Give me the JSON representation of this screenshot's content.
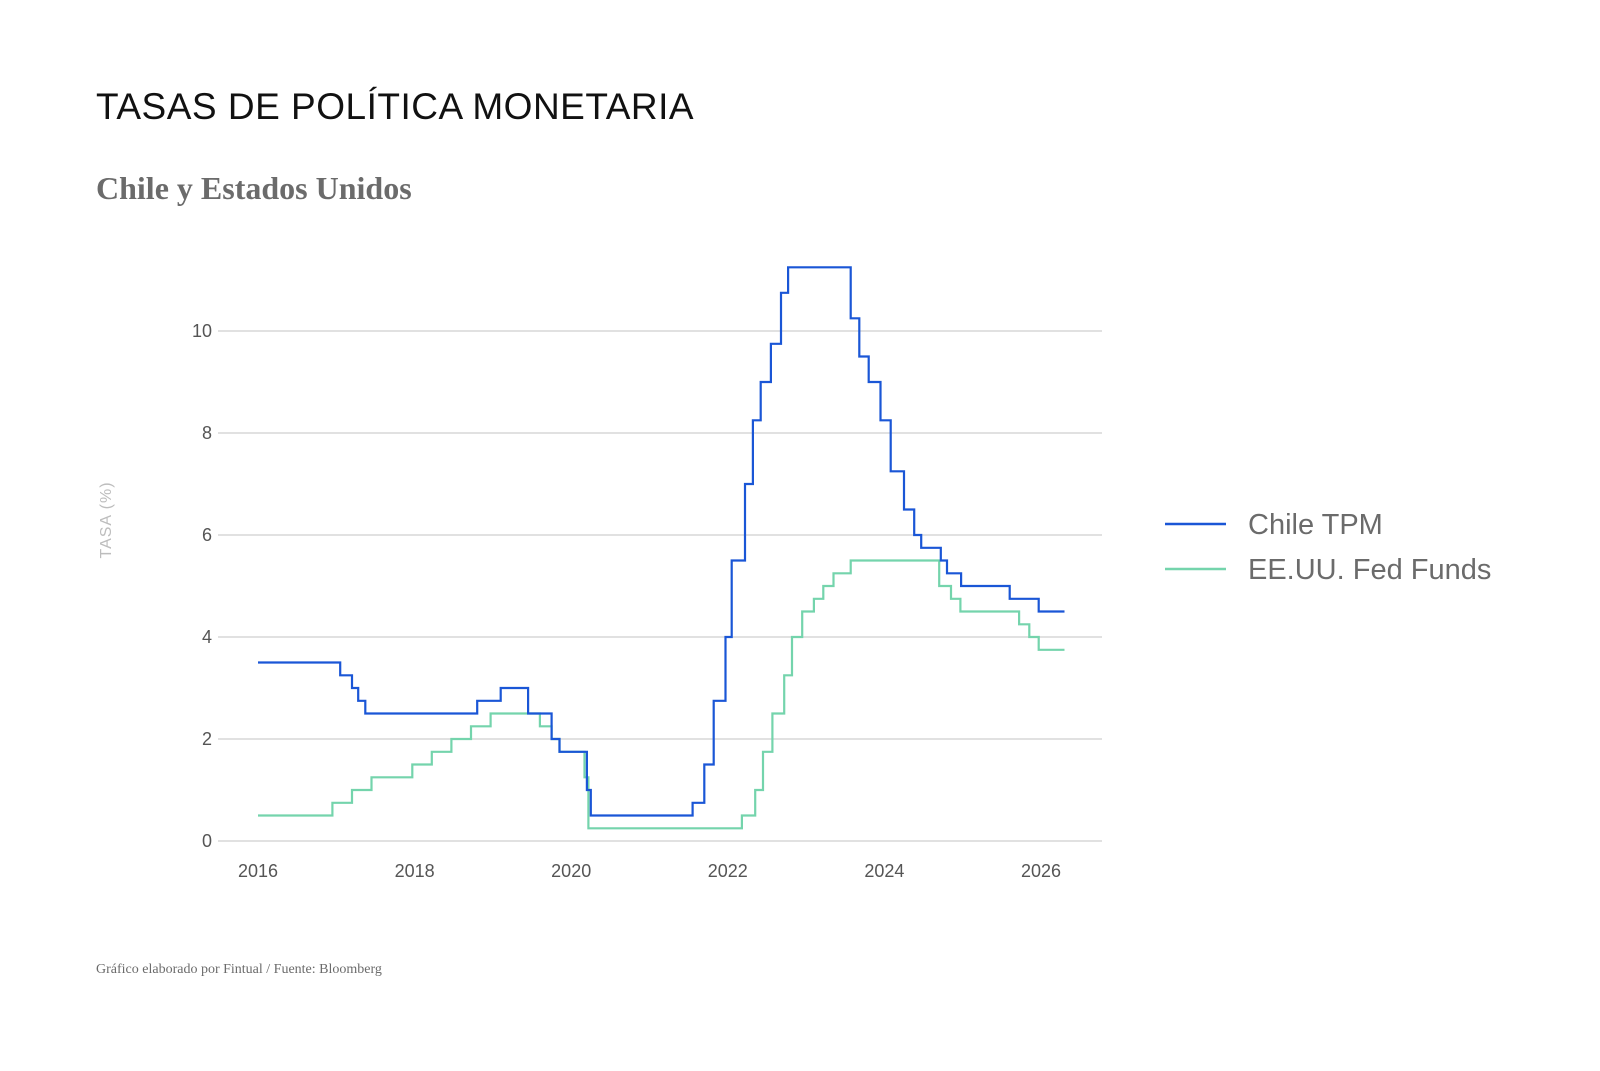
{
  "header": {
    "title": "TASAS DE POLÍTICA MONETARIA",
    "subtitle": "Chile y Estados Unidos"
  },
  "footer": {
    "source": "Gráfico elaborado por Fintual / Fuente: Bloomberg"
  },
  "chart_data": {
    "type": "line",
    "step": true,
    "xlim": [
      2016,
      2026.75
    ],
    "ylim": [
      0,
      11.5
    ],
    "x_ticks": [
      "2016",
      "2018",
      "2020",
      "2022",
      "2024",
      "2026"
    ],
    "y_ticks": [
      "0",
      "2",
      "4",
      "6",
      "8",
      "10"
    ],
    "ylabel": "TASA (%)",
    "grid": true,
    "legend_position": "right",
    "series": [
      {
        "name": "Chile TPM",
        "color": "#1a56d6",
        "points": [
          [
            2016.0,
            3.5
          ],
          [
            2017.05,
            3.25
          ],
          [
            2017.2,
            3.0
          ],
          [
            2017.28,
            2.75
          ],
          [
            2017.37,
            2.5
          ],
          [
            2018.8,
            2.75
          ],
          [
            2019.1,
            3.0
          ],
          [
            2019.45,
            2.5
          ],
          [
            2019.75,
            2.0
          ],
          [
            2019.85,
            1.75
          ],
          [
            2020.2,
            1.0
          ],
          [
            2020.25,
            0.5
          ],
          [
            2021.55,
            0.75
          ],
          [
            2021.7,
            1.5
          ],
          [
            2021.82,
            2.75
          ],
          [
            2021.97,
            4.0
          ],
          [
            2022.05,
            5.5
          ],
          [
            2022.22,
            7.0
          ],
          [
            2022.32,
            8.25
          ],
          [
            2022.42,
            9.0
          ],
          [
            2022.55,
            9.75
          ],
          [
            2022.68,
            10.75
          ],
          [
            2022.77,
            11.25
          ],
          [
            2023.57,
            10.25
          ],
          [
            2023.68,
            9.5
          ],
          [
            2023.8,
            9.0
          ],
          [
            2023.95,
            8.25
          ],
          [
            2024.08,
            7.25
          ],
          [
            2024.25,
            6.5
          ],
          [
            2024.38,
            6.0
          ],
          [
            2024.47,
            5.75
          ],
          [
            2024.72,
            5.5
          ],
          [
            2024.8,
            5.25
          ],
          [
            2024.98,
            5.0
          ],
          [
            2025.6,
            4.75
          ],
          [
            2025.97,
            4.5
          ],
          [
            2026.3,
            4.5
          ]
        ]
      },
      {
        "name": "EE.UU. Fed Funds",
        "color": "#74d4ac",
        "points": [
          [
            2016.0,
            0.5
          ],
          [
            2016.95,
            0.75
          ],
          [
            2017.2,
            1.0
          ],
          [
            2017.45,
            1.25
          ],
          [
            2017.97,
            1.5
          ],
          [
            2018.22,
            1.75
          ],
          [
            2018.47,
            2.0
          ],
          [
            2018.72,
            2.25
          ],
          [
            2018.97,
            2.5
          ],
          [
            2019.6,
            2.25
          ],
          [
            2019.75,
            2.0
          ],
          [
            2019.85,
            1.75
          ],
          [
            2020.17,
            1.25
          ],
          [
            2020.22,
            0.25
          ],
          [
            2022.18,
            0.5
          ],
          [
            2022.35,
            1.0
          ],
          [
            2022.45,
            1.75
          ],
          [
            2022.57,
            2.5
          ],
          [
            2022.72,
            3.25
          ],
          [
            2022.82,
            4.0
          ],
          [
            2022.95,
            4.5
          ],
          [
            2023.1,
            4.75
          ],
          [
            2023.22,
            5.0
          ],
          [
            2023.35,
            5.25
          ],
          [
            2023.57,
            5.5
          ],
          [
            2024.7,
            5.0
          ],
          [
            2024.85,
            4.75
          ],
          [
            2024.97,
            4.5
          ],
          [
            2025.72,
            4.25
          ],
          [
            2025.85,
            4.0
          ],
          [
            2025.97,
            3.75
          ],
          [
            2026.3,
            3.75
          ]
        ]
      }
    ]
  }
}
